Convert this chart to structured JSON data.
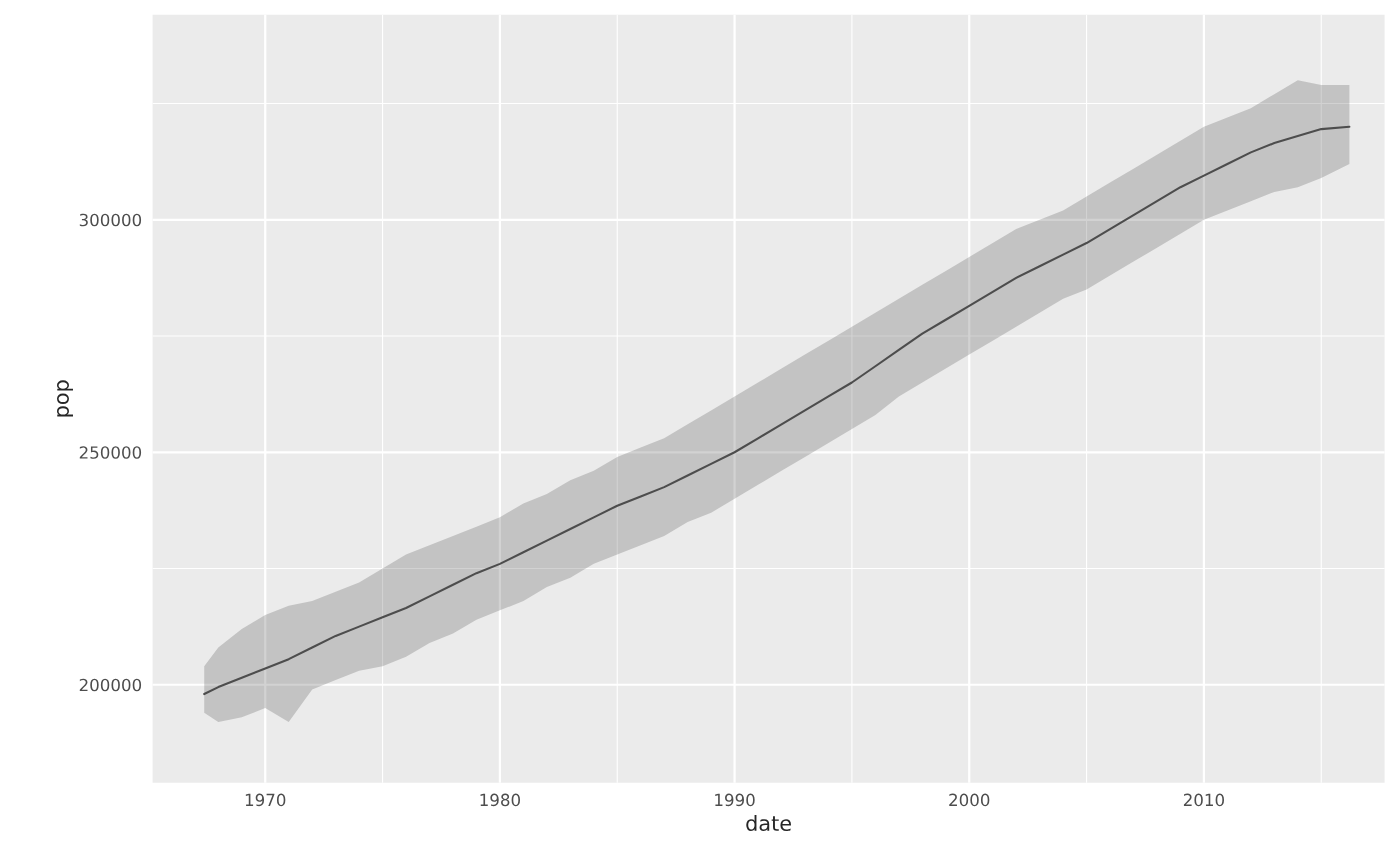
{
  "chart_data": {
    "type": "line",
    "xlabel": "date",
    "ylabel": "pop",
    "xlim": [
      1965.2,
      2017.7
    ],
    "ylim": [
      178900,
      344100
    ],
    "xticks": [
      1970,
      {
        "value": 1975,
        "label": null
      },
      1980,
      {
        "value": 1985,
        "label": null
      },
      1990,
      {
        "value": 1995,
        "label": null
      },
      2000,
      {
        "value": 2005,
        "label": null
      },
      2010,
      {
        "value": 2015,
        "label": null
      }
    ],
    "yticks": [
      200000,
      {
        "value": 225000,
        "label": null
      },
      250000,
      {
        "value": 275000,
        "label": null
      },
      300000,
      {
        "value": 325000,
        "label": null
      }
    ],
    "grid": true,
    "series": [
      {
        "color": "#4d4d4d",
        "x": [
          1967.4,
          1968,
          1969,
          1970,
          1971,
          1972,
          1973,
          1974,
          1975,
          1976,
          1977,
          1978,
          1979,
          1980,
          1981,
          1982,
          1983,
          1984,
          1985,
          1986,
          1987,
          1988,
          1989,
          1990,
          1991,
          1992,
          1993,
          1994,
          1995,
          1996,
          1997,
          1998,
          1999,
          2000,
          2001,
          2002,
          2003,
          2004,
          2005,
          2006,
          2007,
          2008,
          2009,
          2010,
          2011,
          2012,
          2013,
          2014,
          2015,
          2016.2
        ],
        "values": [
          198000,
          199500,
          201500,
          203500,
          205500,
          208000,
          210500,
          212500,
          214500,
          216500,
          219000,
          221500,
          224000,
          226000,
          228500,
          231000,
          233500,
          236000,
          238500,
          240500,
          242500,
          245000,
          247500,
          250000,
          253000,
          256000,
          259000,
          262000,
          265000,
          268500,
          272000,
          275500,
          278500,
          281500,
          284500,
          287500,
          290000,
          292500,
          295000,
          298000,
          301000,
          304000,
          307000,
          309500,
          312000,
          314500,
          316500,
          318000,
          319500,
          320000
        ],
        "lower": [
          194000,
          192000,
          193000,
          195000,
          192000,
          199000,
          201000,
          203000,
          204000,
          206000,
          209000,
          211000,
          214000,
          216000,
          218000,
          221000,
          223000,
          226000,
          228000,
          230000,
          232000,
          235000,
          237000,
          240000,
          243000,
          246000,
          249000,
          252000,
          255000,
          258000,
          262000,
          265000,
          268000,
          271000,
          274000,
          277000,
          280000,
          283000,
          285000,
          288000,
          291000,
          294000,
          297000,
          300000,
          302000,
          304000,
          306000,
          307000,
          309000,
          312000
        ],
        "upper": [
          204000,
          208000,
          212000,
          215000,
          217000,
          218000,
          220000,
          222000,
          225000,
          228000,
          230000,
          232000,
          234000,
          236000,
          239000,
          241000,
          244000,
          246000,
          249000,
          251000,
          253000,
          256000,
          259000,
          262000,
          265000,
          268000,
          271000,
          274000,
          277000,
          280000,
          283000,
          286000,
          289000,
          292000,
          295000,
          298000,
          300000,
          302000,
          305000,
          308000,
          311000,
          314000,
          317000,
          320000,
          322000,
          324000,
          327000,
          330000,
          329000,
          329000
        ]
      }
    ]
  }
}
